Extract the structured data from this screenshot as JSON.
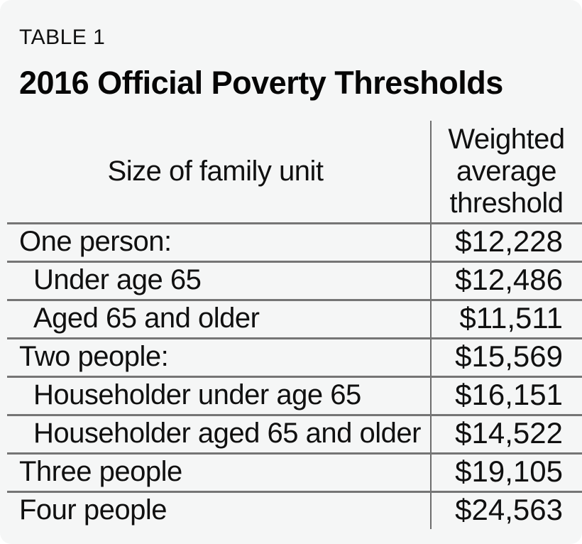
{
  "figure": {
    "table_label": "TABLE 1",
    "title": "2016 Official Poverty Thresholds"
  },
  "colors": {
    "background": "#f5f6f6",
    "rule_vertical": "#6e6e6e",
    "rule_horizontal": "#757575",
    "text": "#101010"
  },
  "chart_data": {
    "type": "table",
    "table_number": "TABLE 1",
    "title": "2016 Official Poverty Thresholds",
    "columns": [
      "Size of family unit",
      "Weighted average threshold"
    ],
    "rows": [
      {
        "label": "One person:",
        "value": "$12,228",
        "value_numeric": 12228,
        "indent": false
      },
      {
        "label": "Under age 65",
        "value": "$12,486",
        "value_numeric": 12486,
        "indent": true
      },
      {
        "label": "Aged 65 and older",
        "value": "$11,511",
        "value_numeric": 11511,
        "indent": true
      },
      {
        "label": "Two people:",
        "value": "$15,569",
        "value_numeric": 15569,
        "indent": false
      },
      {
        "label": "Householder under age 65",
        "value": "$16,151",
        "value_numeric": 16151,
        "indent": true
      },
      {
        "label": "Householder aged 65 and older",
        "value": "$14,522",
        "value_numeric": 14522,
        "indent": true
      },
      {
        "label": "Three people",
        "value": "$19,105",
        "value_numeric": 19105,
        "indent": false
      },
      {
        "label": "Four people",
        "value": "$24,563",
        "value_numeric": 24563,
        "indent": false
      }
    ],
    "layout": {
      "grid": "horizontal rules between rows, single vertical divider, no outer border, no bottom rule",
      "value_alignment": "right",
      "header_alignment": "center"
    }
  }
}
